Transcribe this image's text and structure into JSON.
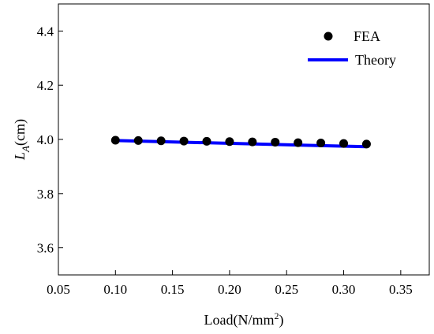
{
  "chart_data": {
    "type": "scatter",
    "title": "",
    "xlabel": {
      "main": "Load(N/mm",
      "sup": "2",
      "tail": ")"
    },
    "ylabel": {
      "main": "L",
      "sub": "A",
      "tail": "(cm)"
    },
    "xlim": [
      0.05,
      0.375
    ],
    "ylim": [
      3.5,
      4.5
    ],
    "xticks": [
      0.05,
      0.1,
      0.15,
      0.2,
      0.25,
      0.3,
      0.35
    ],
    "xtick_labels": [
      "0.05",
      "0.10",
      "0.15",
      "0.20",
      "0.25",
      "0.30",
      "0.35"
    ],
    "yticks": [
      3.6,
      3.8,
      4.0,
      4.2,
      4.4
    ],
    "ytick_labels": [
      "3.6",
      "3.8",
      "4.0",
      "4.2",
      "4.4"
    ],
    "grid": false,
    "legend_position": "top-right",
    "series": [
      {
        "name": "FEA",
        "kind": "scatter",
        "color": "#000000",
        "x": [
          0.1,
          0.12,
          0.14,
          0.16,
          0.18,
          0.2,
          0.22,
          0.24,
          0.26,
          0.28,
          0.3,
          0.32
        ],
        "y": [
          3.997,
          3.996,
          3.995,
          3.994,
          3.993,
          3.992,
          3.991,
          3.99,
          3.988,
          3.987,
          3.985,
          3.983
        ]
      },
      {
        "name": "Theory",
        "kind": "line",
        "color": "#0000ff",
        "x": [
          0.1,
          0.32
        ],
        "y": [
          3.996,
          3.973
        ]
      }
    ]
  }
}
